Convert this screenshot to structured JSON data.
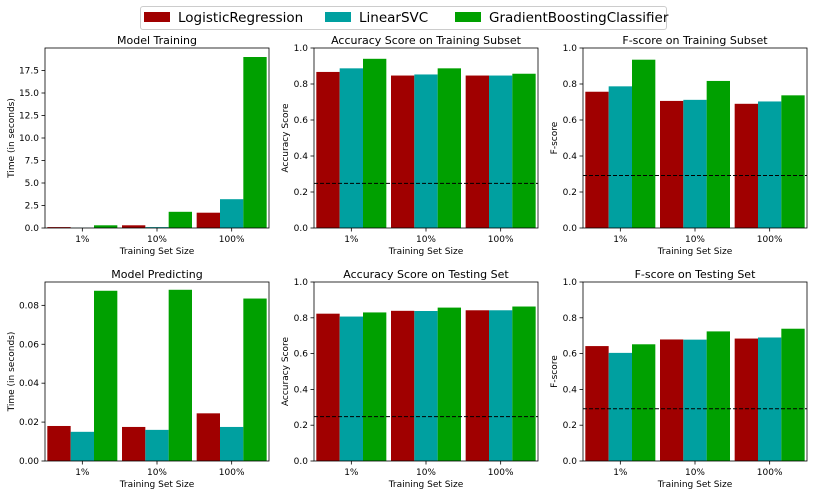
{
  "legend": [
    {
      "name": "LogisticRegression",
      "color": "#A00000"
    },
    {
      "name": "LinearSVC",
      "color": "#00A0A0"
    },
    {
      "name": "GradientBoostingClassifier",
      "color": "#00A000"
    }
  ],
  "chart_data": [
    {
      "type": "bar",
      "title": "Model Training",
      "xlabel": "Training Set Size",
      "ylabel": "Time (in seconds)",
      "categories": [
        "1%",
        "10%",
        "100%"
      ],
      "ylim": [
        0,
        20
      ],
      "yticks": [
        "0.0",
        "2.5",
        "5.0",
        "7.5",
        "10.0",
        "12.5",
        "15.0",
        "17.5"
      ],
      "series": [
        {
          "name": "LogisticRegression",
          "values": [
            0.1,
            0.3,
            1.7
          ]
        },
        {
          "name": "LinearSVC",
          "values": [
            0.02,
            0.1,
            3.2
          ]
        },
        {
          "name": "GradientBoostingClassifier",
          "values": [
            0.3,
            1.8,
            19.0
          ]
        }
      ]
    },
    {
      "type": "bar",
      "title": "Accuracy Score on Training Subset",
      "xlabel": "Training Set Size",
      "ylabel": "Accuracy Score",
      "categories": [
        "1%",
        "10%",
        "100%"
      ],
      "ylim": [
        0,
        1.0
      ],
      "yticks": [
        "0.0",
        "0.2",
        "0.4",
        "0.6",
        "0.8",
        "1.0"
      ],
      "baseline": 0.2478,
      "series": [
        {
          "name": "LogisticRegression",
          "values": [
            0.867,
            0.847,
            0.847
          ]
        },
        {
          "name": "LinearSVC",
          "values": [
            0.887,
            0.853,
            0.847
          ]
        },
        {
          "name": "GradientBoostingClassifier",
          "values": [
            0.94,
            0.887,
            0.857
          ]
        }
      ]
    },
    {
      "type": "bar",
      "title": "F-score on Training Subset",
      "xlabel": "Training Set Size",
      "ylabel": "F-score",
      "categories": [
        "1%",
        "10%",
        "100%"
      ],
      "ylim": [
        0,
        1.0
      ],
      "yticks": [
        "0.0",
        "0.2",
        "0.4",
        "0.6",
        "0.8",
        "1.0"
      ],
      "baseline": 0.2917,
      "series": [
        {
          "name": "LogisticRegression",
          "values": [
            0.757,
            0.706,
            0.69
          ]
        },
        {
          "name": "LinearSVC",
          "values": [
            0.787,
            0.712,
            0.703
          ]
        },
        {
          "name": "GradientBoostingClassifier",
          "values": [
            0.935,
            0.817,
            0.737
          ]
        }
      ]
    },
    {
      "type": "bar",
      "title": "Model Predicting",
      "xlabel": "Training Set Size",
      "ylabel": "Time (in seconds)",
      "categories": [
        "1%",
        "10%",
        "100%"
      ],
      "ylim": [
        0,
        0.092
      ],
      "yticks": [
        "0.00",
        "0.02",
        "0.04",
        "0.06",
        "0.08"
      ],
      "series": [
        {
          "name": "LogisticRegression",
          "values": [
            0.018,
            0.0175,
            0.0245
          ]
        },
        {
          "name": "LinearSVC",
          "values": [
            0.015,
            0.016,
            0.0175
          ]
        },
        {
          "name": "GradientBoostingClassifier",
          "values": [
            0.0875,
            0.088,
            0.0835
          ]
        }
      ]
    },
    {
      "type": "bar",
      "title": "Accuracy Score on Testing Set",
      "xlabel": "Training Set Size",
      "ylabel": "Accuracy Score",
      "categories": [
        "1%",
        "10%",
        "100%"
      ],
      "ylim": [
        0,
        1.0
      ],
      "yticks": [
        "0.0",
        "0.2",
        "0.4",
        "0.6",
        "0.8",
        "1.0"
      ],
      "baseline": 0.2478,
      "series": [
        {
          "name": "LogisticRegression",
          "values": [
            0.823,
            0.839,
            0.842
          ]
        },
        {
          "name": "LinearSVC",
          "values": [
            0.807,
            0.838,
            0.842
          ]
        },
        {
          "name": "GradientBoostingClassifier",
          "values": [
            0.83,
            0.857,
            0.863
          ]
        }
      ]
    },
    {
      "type": "bar",
      "title": "F-score on Testing Set",
      "xlabel": "Training Set Size",
      "ylabel": "F-score",
      "categories": [
        "1%",
        "10%",
        "100%"
      ],
      "ylim": [
        0,
        1.0
      ],
      "yticks": [
        "0.0",
        "0.2",
        "0.4",
        "0.6",
        "0.8",
        "1.0"
      ],
      "baseline": 0.2917,
      "series": [
        {
          "name": "LogisticRegression",
          "values": [
            0.642,
            0.679,
            0.684
          ]
        },
        {
          "name": "LinearSVC",
          "values": [
            0.604,
            0.678,
            0.69
          ]
        },
        {
          "name": "GradientBoostingClassifier",
          "values": [
            0.652,
            0.724,
            0.739
          ]
        }
      ]
    }
  ]
}
